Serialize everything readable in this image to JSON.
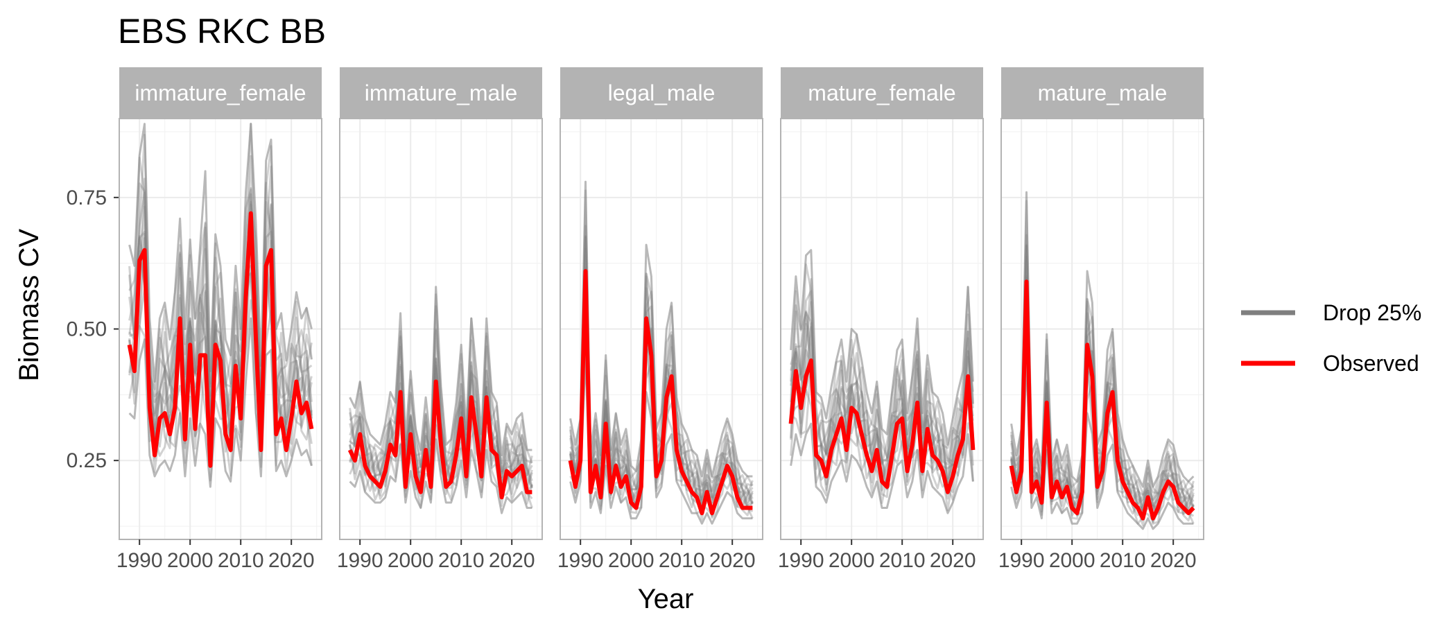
{
  "chart_data": {
    "type": "line",
    "title": "EBS RKC BB",
    "xlabel": "Year",
    "ylabel": "Biomass CV",
    "x_ticks": [
      1990,
      2000,
      2010,
      2020
    ],
    "y_ticks": [
      0.25,
      0.5,
      0.75
    ],
    "y_tick_labels": [
      "0.25",
      "0.50",
      "0.75"
    ],
    "xlim": [
      1986,
      2026
    ],
    "ylim": [
      0.1,
      0.9
    ],
    "grid": true,
    "legend_position": "right",
    "colors": {
      "drop": "#7f7f7f",
      "observed": "#ff0000",
      "strip_bg": "#b3b3b3",
      "grid": "#ebebeb",
      "panel_border": "#b3b3b3"
    },
    "legend": [
      {
        "key": "drop",
        "label": "Drop 25%"
      },
      {
        "key": "observed",
        "label": "Observed"
      }
    ],
    "panels": [
      {
        "name": "immature_female",
        "x": [
          1988,
          1989,
          1990,
          1991,
          1992,
          1993,
          1994,
          1995,
          1996,
          1997,
          1998,
          1999,
          2000,
          2001,
          2002,
          2003,
          2004,
          2005,
          2006,
          2007,
          2008,
          2009,
          2010,
          2011,
          2012,
          2013,
          2014,
          2015,
          2016,
          2017,
          2018,
          2019,
          2020,
          2021,
          2022,
          2023,
          2024
        ],
        "observed": [
          0.47,
          0.42,
          0.63,
          0.65,
          0.35,
          0.26,
          0.33,
          0.34,
          0.3,
          0.35,
          0.52,
          0.29,
          0.47,
          0.31,
          0.45,
          0.45,
          0.24,
          0.47,
          0.44,
          0.3,
          0.27,
          0.43,
          0.33,
          0.56,
          0.72,
          0.48,
          0.27,
          0.62,
          0.65,
          0.3,
          0.33,
          0.27,
          0.33,
          0.4,
          0.34,
          0.36,
          0.31
        ],
        "drop_upper": [
          0.66,
          0.62,
          0.83,
          0.89,
          0.52,
          0.4,
          0.52,
          0.55,
          0.48,
          0.57,
          0.71,
          0.5,
          0.67,
          0.52,
          0.66,
          0.8,
          0.42,
          0.68,
          0.62,
          0.48,
          0.45,
          0.62,
          0.5,
          0.76,
          0.89,
          0.7,
          0.43,
          0.82,
          0.86,
          0.5,
          0.53,
          0.44,
          0.5,
          0.57,
          0.52,
          0.54,
          0.5
        ],
        "drop_lower": [
          0.34,
          0.33,
          0.44,
          0.48,
          0.26,
          0.22,
          0.24,
          0.25,
          0.23,
          0.26,
          0.34,
          0.22,
          0.33,
          0.24,
          0.32,
          0.3,
          0.2,
          0.33,
          0.31,
          0.23,
          0.21,
          0.31,
          0.25,
          0.4,
          0.52,
          0.34,
          0.22,
          0.45,
          0.46,
          0.23,
          0.25,
          0.22,
          0.25,
          0.29,
          0.26,
          0.27,
          0.24
        ]
      },
      {
        "name": "immature_male",
        "x": [
          1988,
          1989,
          1990,
          1991,
          1992,
          1993,
          1994,
          1995,
          1996,
          1997,
          1998,
          1999,
          2000,
          2001,
          2002,
          2003,
          2004,
          2005,
          2006,
          2007,
          2008,
          2009,
          2010,
          2011,
          2012,
          2013,
          2014,
          2015,
          2016,
          2017,
          2018,
          2019,
          2020,
          2021,
          2022,
          2023,
          2024
        ],
        "observed": [
          0.27,
          0.25,
          0.3,
          0.24,
          0.22,
          0.21,
          0.2,
          0.23,
          0.28,
          0.26,
          0.38,
          0.2,
          0.3,
          0.22,
          0.19,
          0.27,
          0.2,
          0.4,
          0.28,
          0.2,
          0.21,
          0.26,
          0.33,
          0.22,
          0.37,
          0.3,
          0.22,
          0.37,
          0.27,
          0.26,
          0.18,
          0.23,
          0.22,
          0.23,
          0.24,
          0.19,
          0.19
        ],
        "drop_upper": [
          0.37,
          0.35,
          0.4,
          0.33,
          0.3,
          0.29,
          0.28,
          0.32,
          0.38,
          0.36,
          0.53,
          0.29,
          0.42,
          0.31,
          0.27,
          0.37,
          0.28,
          0.58,
          0.39,
          0.28,
          0.29,
          0.36,
          0.47,
          0.31,
          0.52,
          0.42,
          0.3,
          0.52,
          0.38,
          0.36,
          0.26,
          0.32,
          0.3,
          0.33,
          0.34,
          0.27,
          0.27
        ],
        "drop_lower": [
          0.21,
          0.2,
          0.23,
          0.19,
          0.18,
          0.17,
          0.17,
          0.18,
          0.22,
          0.21,
          0.28,
          0.17,
          0.23,
          0.18,
          0.16,
          0.21,
          0.17,
          0.29,
          0.22,
          0.17,
          0.17,
          0.2,
          0.25,
          0.18,
          0.27,
          0.23,
          0.18,
          0.27,
          0.21,
          0.2,
          0.15,
          0.18,
          0.17,
          0.18,
          0.19,
          0.16,
          0.16
        ]
      },
      {
        "name": "legal_male",
        "x": [
          1988,
          1989,
          1990,
          1991,
          1992,
          1993,
          1994,
          1995,
          1996,
          1997,
          1998,
          1999,
          2000,
          2001,
          2002,
          2003,
          2004,
          2005,
          2006,
          2007,
          2008,
          2009,
          2010,
          2011,
          2012,
          2013,
          2014,
          2015,
          2016,
          2017,
          2018,
          2019,
          2020,
          2021,
          2022,
          2023,
          2024
        ],
        "observed": [
          0.25,
          0.2,
          0.25,
          0.61,
          0.19,
          0.24,
          0.18,
          0.32,
          0.19,
          0.24,
          0.2,
          0.22,
          0.17,
          0.16,
          0.2,
          0.52,
          0.45,
          0.22,
          0.25,
          0.37,
          0.41,
          0.27,
          0.23,
          0.21,
          0.19,
          0.18,
          0.15,
          0.19,
          0.15,
          0.18,
          0.21,
          0.24,
          0.22,
          0.18,
          0.16,
          0.16,
          0.16
        ],
        "drop_upper": [
          0.33,
          0.28,
          0.33,
          0.78,
          0.27,
          0.34,
          0.26,
          0.45,
          0.27,
          0.34,
          0.28,
          0.31,
          0.24,
          0.23,
          0.29,
          0.66,
          0.6,
          0.31,
          0.34,
          0.5,
          0.55,
          0.37,
          0.32,
          0.3,
          0.27,
          0.26,
          0.22,
          0.27,
          0.22,
          0.26,
          0.3,
          0.33,
          0.3,
          0.25,
          0.23,
          0.22,
          0.22
        ],
        "drop_lower": [
          0.21,
          0.17,
          0.21,
          0.45,
          0.16,
          0.19,
          0.15,
          0.24,
          0.16,
          0.2,
          0.17,
          0.18,
          0.14,
          0.14,
          0.16,
          0.38,
          0.33,
          0.18,
          0.2,
          0.28,
          0.3,
          0.21,
          0.19,
          0.17,
          0.15,
          0.15,
          0.13,
          0.15,
          0.13,
          0.15,
          0.17,
          0.19,
          0.18,
          0.15,
          0.14,
          0.14,
          0.14
        ]
      },
      {
        "name": "mature_female",
        "x": [
          1988,
          1989,
          1990,
          1991,
          1992,
          1993,
          1994,
          1995,
          1996,
          1997,
          1998,
          1999,
          2000,
          2001,
          2002,
          2003,
          2004,
          2005,
          2006,
          2007,
          2008,
          2009,
          2010,
          2011,
          2012,
          2013,
          2014,
          2015,
          2016,
          2017,
          2018,
          2019,
          2020,
          2021,
          2022,
          2023,
          2024
        ],
        "observed": [
          0.32,
          0.42,
          0.35,
          0.41,
          0.44,
          0.26,
          0.25,
          0.22,
          0.27,
          0.3,
          0.33,
          0.27,
          0.35,
          0.34,
          0.3,
          0.26,
          0.23,
          0.27,
          0.21,
          0.2,
          0.26,
          0.32,
          0.33,
          0.23,
          0.28,
          0.36,
          0.23,
          0.31,
          0.26,
          0.25,
          0.23,
          0.19,
          0.22,
          0.26,
          0.29,
          0.41,
          0.27
        ],
        "drop_upper": [
          0.46,
          0.6,
          0.5,
          0.64,
          0.65,
          0.38,
          0.37,
          0.33,
          0.39,
          0.44,
          0.48,
          0.4,
          0.5,
          0.49,
          0.44,
          0.38,
          0.34,
          0.4,
          0.31,
          0.3,
          0.38,
          0.46,
          0.48,
          0.34,
          0.41,
          0.52,
          0.34,
          0.45,
          0.38,
          0.37,
          0.34,
          0.28,
          0.33,
          0.38,
          0.42,
          0.58,
          0.4
        ],
        "drop_lower": [
          0.24,
          0.3,
          0.26,
          0.3,
          0.32,
          0.2,
          0.19,
          0.17,
          0.21,
          0.23,
          0.25,
          0.21,
          0.26,
          0.25,
          0.23,
          0.2,
          0.18,
          0.21,
          0.16,
          0.16,
          0.2,
          0.24,
          0.25,
          0.18,
          0.21,
          0.27,
          0.18,
          0.23,
          0.2,
          0.19,
          0.18,
          0.15,
          0.17,
          0.2,
          0.22,
          0.3,
          0.21
        ]
      },
      {
        "name": "mature_male",
        "x": [
          1988,
          1989,
          1990,
          1991,
          1992,
          1993,
          1994,
          1995,
          1996,
          1997,
          1998,
          1999,
          2000,
          2001,
          2002,
          2003,
          2004,
          2005,
          2006,
          2007,
          2008,
          2009,
          2010,
          2011,
          2012,
          2013,
          2014,
          2015,
          2016,
          2017,
          2018,
          2019,
          2020,
          2021,
          2022,
          2023,
          2024
        ],
        "observed": [
          0.24,
          0.19,
          0.23,
          0.59,
          0.19,
          0.21,
          0.17,
          0.36,
          0.18,
          0.21,
          0.18,
          0.2,
          0.16,
          0.15,
          0.19,
          0.47,
          0.41,
          0.2,
          0.23,
          0.34,
          0.38,
          0.25,
          0.21,
          0.19,
          0.17,
          0.16,
          0.14,
          0.18,
          0.14,
          0.16,
          0.19,
          0.21,
          0.2,
          0.17,
          0.16,
          0.15,
          0.16
        ],
        "drop_upper": [
          0.32,
          0.26,
          0.31,
          0.76,
          0.26,
          0.29,
          0.24,
          0.49,
          0.25,
          0.29,
          0.25,
          0.28,
          0.22,
          0.21,
          0.26,
          0.61,
          0.55,
          0.28,
          0.31,
          0.46,
          0.5,
          0.34,
          0.29,
          0.26,
          0.24,
          0.22,
          0.2,
          0.25,
          0.2,
          0.22,
          0.26,
          0.29,
          0.28,
          0.24,
          0.22,
          0.21,
          0.22
        ],
        "drop_lower": [
          0.2,
          0.16,
          0.19,
          0.44,
          0.16,
          0.18,
          0.14,
          0.27,
          0.15,
          0.17,
          0.15,
          0.16,
          0.13,
          0.13,
          0.15,
          0.34,
          0.3,
          0.16,
          0.19,
          0.26,
          0.28,
          0.19,
          0.17,
          0.15,
          0.14,
          0.13,
          0.12,
          0.14,
          0.12,
          0.13,
          0.15,
          0.17,
          0.16,
          0.14,
          0.13,
          0.13,
          0.13
        ]
      }
    ]
  }
}
